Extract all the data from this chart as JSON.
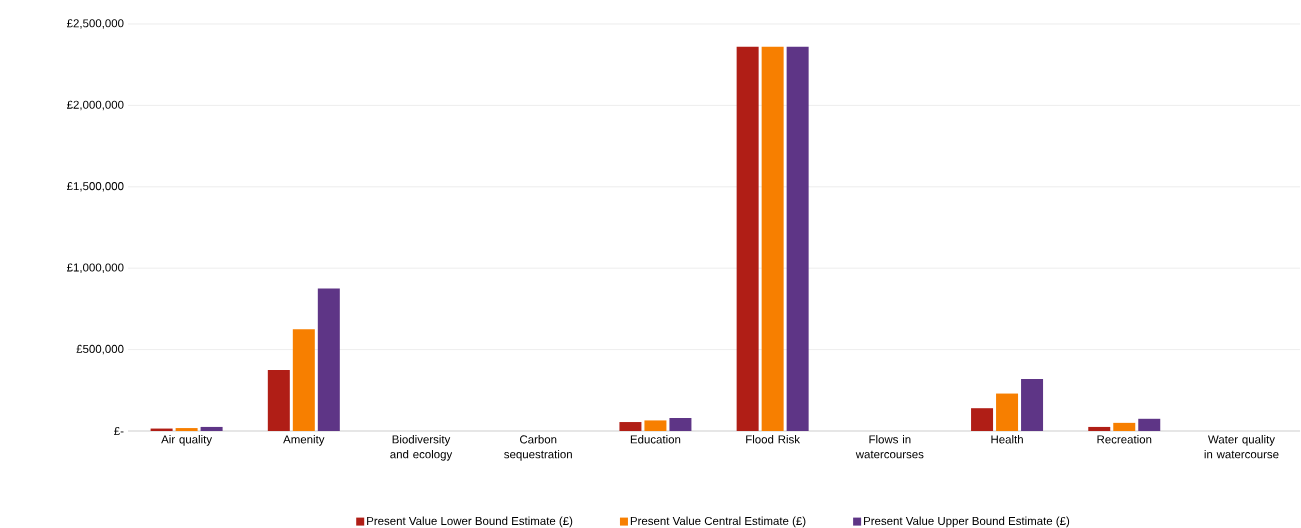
{
  "chart_data": {
    "type": "bar",
    "categories": [
      "Air quality",
      "Amenity",
      "Biodiversity and ecology",
      "Carbon sequestration",
      "Education",
      "Flood Risk",
      "Flows in watercourses",
      "Health",
      "Recreation",
      "Water quality in watercourse"
    ],
    "series": [
      {
        "name": "Present Value Lower Bound Estimate (£)",
        "color": "#b01e16",
        "values": [
          15000,
          375000,
          0,
          0,
          55000,
          2360000,
          0,
          140000,
          25000,
          0
        ]
      },
      {
        "name": "Present Value Central Estimate (£)",
        "color": "#f77f00",
        "values": [
          18000,
          625000,
          0,
          0,
          65000,
          2360000,
          0,
          230000,
          50000,
          0
        ]
      },
      {
        "name": "Present Value Upper Bound Estimate (£)",
        "color": "#5e3586",
        "values": [
          25000,
          875000,
          0,
          0,
          80000,
          2360000,
          0,
          320000,
          75000,
          0
        ]
      }
    ],
    "ylim": [
      0,
      2500000
    ],
    "yticks": [
      {
        "value": 0,
        "label": "£-"
      },
      {
        "value": 500000,
        "label": "£500,000"
      },
      {
        "value": 1000000,
        "label": "£1,000,000"
      },
      {
        "value": 1500000,
        "label": "£1,500,000"
      },
      {
        "value": 2000000,
        "label": "£2,000,000"
      },
      {
        "value": 2500000,
        "label": "£2,500,000"
      }
    ],
    "grid": "y",
    "legend": "bottom"
  }
}
